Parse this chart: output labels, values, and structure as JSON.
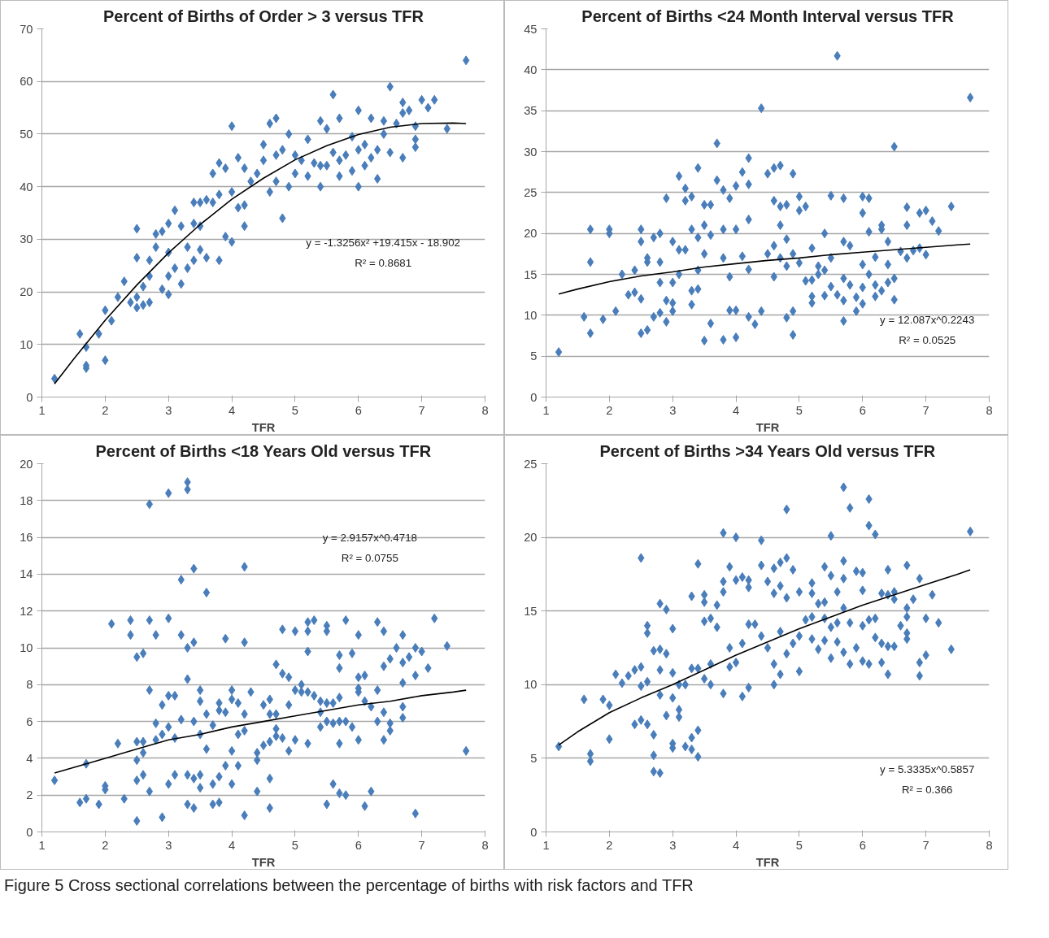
{
  "chart_data": [
    {
      "type": "scatter",
      "title": "Percent of Births of Order > 3 versus TFR",
      "xlabel": "TFR",
      "xlim": [
        1,
        8
      ],
      "xticks": [
        1,
        2,
        3,
        4,
        5,
        6,
        7,
        8
      ],
      "ylim": [
        0,
        70
      ],
      "yticks": [
        0,
        10,
        20,
        30,
        40,
        50,
        60,
        70
      ],
      "grid": "y",
      "series": [
        {
          "marker": "diamond",
          "color": "#4a7ebb",
          "x": [
            1.2,
            1.6,
            1.7,
            1.7,
            1.7,
            1.9,
            2.0,
            2.0,
            2.1,
            2.2,
            2.3,
            2.4,
            2.5,
            2.5,
            2.5,
            2.5,
            2.6,
            2.6,
            2.7,
            2.7,
            2.7,
            2.8,
            2.8,
            2.9,
            2.9,
            3.0,
            3.0,
            3.0,
            3.0,
            3.1,
            3.1,
            3.2,
            3.2,
            3.3,
            3.3,
            3.4,
            3.4,
            3.4,
            3.5,
            3.5,
            3.5,
            3.6,
            3.6,
            3.7,
            3.7,
            3.8,
            3.8,
            3.8,
            3.9,
            3.9,
            4.0,
            4.0,
            4.0,
            4.1,
            4.1,
            4.2,
            4.2,
            4.2,
            4.3,
            4.4,
            4.5,
            4.5,
            4.6,
            4.6,
            4.7,
            4.7,
            4.7,
            4.8,
            4.8,
            4.9,
            4.9,
            5.0,
            5.0,
            5.1,
            5.2,
            5.2,
            5.3,
            5.4,
            5.4,
            5.4,
            5.5,
            5.5,
            5.6,
            5.6,
            5.7,
            5.7,
            5.7,
            5.8,
            5.9,
            5.9,
            6.0,
            6.0,
            6.0,
            6.1,
            6.1,
            6.2,
            6.2,
            6.3,
            6.3,
            6.4,
            6.4,
            6.5,
            6.5,
            6.6,
            6.7,
            6.7,
            6.7,
            6.8,
            6.9,
            6.9,
            6.9,
            7.0,
            7.1,
            7.2,
            7.4,
            7.7
          ],
          "values": [
            3.5,
            12,
            9.5,
            6,
            5.5,
            12,
            16.5,
            7,
            14.5,
            19,
            22,
            18,
            32,
            26.5,
            17,
            19,
            21,
            17.5,
            18,
            23,
            26,
            28.5,
            31,
            31.5,
            20.5,
            33,
            27.5,
            23,
            19.5,
            35.5,
            24.5,
            32.5,
            21.5,
            28.5,
            24.5,
            37,
            33,
            26,
            37,
            32.5,
            28,
            37.5,
            26.5,
            42.5,
            37,
            44.5,
            38.5,
            26,
            43.5,
            30.5,
            51.5,
            39,
            29.5,
            45.5,
            36,
            43.5,
            36.5,
            32.5,
            41,
            42.5,
            48,
            45,
            52,
            39,
            53,
            46,
            41,
            47,
            34,
            50,
            40,
            46,
            42.5,
            45,
            49,
            42,
            44.5,
            52.5,
            40,
            44,
            51,
            44,
            57.5,
            46.5,
            53,
            45,
            42,
            46,
            43,
            49.5,
            54.5,
            47,
            40,
            48,
            44,
            53,
            45.5,
            41.5,
            47,
            52.5,
            50,
            59,
            46.5,
            52,
            56,
            54,
            45.5,
            54.5,
            51.5,
            49,
            47.5,
            56.5,
            55,
            56.5,
            51,
            64
          ]
        },
        {
          "type": "line",
          "color": "#000000",
          "x": [
            1.2,
            1.5,
            2,
            2.5,
            3,
            3.5,
            4,
            4.5,
            5,
            5.5,
            6,
            6.5,
            7,
            7.5,
            7.7
          ],
          "values": [
            2.5,
            7.2,
            14.6,
            21.3,
            27.4,
            32.8,
            37.6,
            41.6,
            45.1,
            47.8,
            49.9,
            51.3,
            52.0,
            52.1,
            52.0
          ]
        }
      ],
      "annotations": [
        "y = -1.3256x² +19.415x - 18.902",
        "R² = 0.8681"
      ]
    },
    {
      "type": "scatter",
      "title": "Percent of Births <24 Month Interval versus TFR",
      "xlabel": "TFR",
      "xlim": [
        1,
        8
      ],
      "xticks": [
        1,
        2,
        3,
        4,
        5,
        6,
        7,
        8
      ],
      "ylim": [
        0,
        45
      ],
      "yticks": [
        0,
        5,
        10,
        15,
        20,
        25,
        30,
        35,
        40,
        45
      ],
      "grid": "y",
      "series": [
        {
          "marker": "diamond",
          "color": "#4a7ebb",
          "x": [
            1.2,
            1.6,
            1.7,
            1.7,
            1.7,
            1.9,
            2.0,
            2.0,
            2.1,
            2.2,
            2.3,
            2.4,
            2.4,
            2.5,
            2.5,
            2.5,
            2.5,
            2.6,
            2.6,
            2.6,
            2.7,
            2.7,
            2.8,
            2.8,
            2.8,
            2.8,
            2.9,
            2.9,
            2.9,
            3.0,
            3.0,
            3.0,
            3.0,
            3.1,
            3.1,
            3.1,
            3.2,
            3.2,
            3.2,
            3.3,
            3.3,
            3.3,
            3.3,
            3.4,
            3.4,
            3.4,
            3.4,
            3.5,
            3.5,
            3.5,
            3.5,
            3.6,
            3.6,
            3.6,
            3.7,
            3.7,
            3.8,
            3.8,
            3.8,
            3.8,
            3.9,
            3.9,
            3.9,
            4.0,
            4.0,
            4.0,
            4.0,
            4.1,
            4.1,
            4.2,
            4.2,
            4.2,
            4.2,
            4.2,
            4.3,
            4.4,
            4.4,
            4.5,
            4.5,
            4.6,
            4.6,
            4.6,
            4.6,
            4.7,
            4.7,
            4.7,
            4.7,
            4.8,
            4.8,
            4.8,
            4.8,
            4.9,
            4.9,
            4.9,
            4.9,
            5.0,
            5.0,
            5.0,
            5.1,
            5.1,
            5.2,
            5.2,
            5.2,
            5.2,
            5.3,
            5.3,
            5.4,
            5.4,
            5.4,
            5.5,
            5.5,
            5.5,
            5.6,
            5.6,
            5.7,
            5.7,
            5.7,
            5.7,
            5.7,
            5.8,
            5.8,
            5.9,
            5.9,
            6.0,
            6.0,
            6.0,
            6.0,
            6.0,
            6.1,
            6.1,
            6.1,
            6.2,
            6.2,
            6.2,
            6.3,
            6.3,
            6.3,
            6.4,
            6.4,
            6.4,
            6.5,
            6.5,
            6.5,
            6.6,
            6.7,
            6.7,
            6.7,
            6.8,
            6.9,
            6.9,
            7.0,
            7.0,
            7.1,
            7.2,
            7.4,
            7.7
          ],
          "values": [
            5.5,
            9.8,
            20.5,
            16.5,
            7.8,
            9.5,
            20.5,
            20,
            10.5,
            15,
            12.5,
            15.5,
            12.8,
            20.5,
            19,
            12,
            7.8,
            17,
            16.5,
            8.2,
            19.5,
            9.8,
            20,
            16.5,
            14,
            10.3,
            24.3,
            11.8,
            9.2,
            19,
            14,
            11.5,
            10.5,
            27,
            18,
            15,
            25.5,
            24,
            18,
            24.5,
            20.5,
            13,
            11.3,
            28,
            19.5,
            15.5,
            13.2,
            23.5,
            21,
            17.5,
            6.9,
            23.5,
            19.8,
            9,
            31,
            26.5,
            25.3,
            20.5,
            17,
            7,
            24.3,
            14.7,
            10.6,
            25.8,
            20.5,
            10.6,
            7.3,
            27.5,
            17.2,
            29.2,
            26,
            21.7,
            15.6,
            9.8,
            8.9,
            35.3,
            10.5,
            27.3,
            17.5,
            28,
            24,
            18.5,
            14.7,
            28.3,
            23.3,
            21,
            17,
            23.5,
            19.3,
            16,
            9.7,
            27.3,
            17.5,
            10.5,
            7.6,
            24.5,
            22.8,
            16.4,
            23.3,
            14.2,
            18.2,
            14.3,
            12.3,
            11.5,
            16,
            15,
            20,
            15.5,
            12.4,
            24.6,
            17,
            13.5,
            41.7,
            12.5,
            24.3,
            19,
            14.5,
            11.8,
            9.3,
            18.5,
            13.7,
            12.2,
            10.5,
            24.5,
            22.5,
            16.2,
            13.4,
            11.4,
            24.3,
            20.2,
            15,
            17.1,
            13.7,
            12.3,
            21,
            20.5,
            13,
            19,
            16.2,
            14,
            30.6,
            14.5,
            11.9,
            17.8,
            23.2,
            21,
            17,
            17.9,
            22.5,
            18.2,
            22.8,
            17.4,
            21.5,
            20.3,
            23.3,
            36.6
          ]
        },
        {
          "type": "line",
          "color": "#000000",
          "x": [
            1.2,
            1.5,
            2,
            2.5,
            3,
            3.5,
            4,
            4.5,
            5,
            5.5,
            6,
            6.5,
            7,
            7.5,
            7.7
          ],
          "values": [
            12.6,
            13.2,
            14.1,
            14.8,
            15.3,
            15.9,
            16.3,
            16.7,
            17.0,
            17.4,
            17.7,
            18.0,
            18.3,
            18.6,
            18.7
          ]
        }
      ],
      "annotations": [
        "y = 12.087x^0.2243",
        "R² = 0.0525"
      ]
    },
    {
      "type": "scatter",
      "title": "Percent of Births <18 Years Old versus TFR",
      "xlabel": "TFR",
      "xlim": [
        1,
        8
      ],
      "xticks": [
        1,
        2,
        3,
        4,
        5,
        6,
        7,
        8
      ],
      "ylim": [
        0,
        20
      ],
      "yticks": [
        0,
        2,
        4,
        6,
        8,
        10,
        12,
        14,
        16,
        18,
        20
      ],
      "grid": "y",
      "series": [
        {
          "marker": "diamond",
          "color": "#4a7ebb",
          "x": [
            1.2,
            1.6,
            1.7,
            1.7,
            1.9,
            2.0,
            2.0,
            2.1,
            2.2,
            2.3,
            2.4,
            2.4,
            2.5,
            2.5,
            2.5,
            2.5,
            2.5,
            2.6,
            2.6,
            2.6,
            2.6,
            2.7,
            2.7,
            2.7,
            2.7,
            2.8,
            2.8,
            2.8,
            2.9,
            2.9,
            2.9,
            3.0,
            3.0,
            3.0,
            3.0,
            3.0,
            3.1,
            3.1,
            3.1,
            3.2,
            3.2,
            3.2,
            3.3,
            3.3,
            3.3,
            3.3,
            3.3,
            3.3,
            3.4,
            3.4,
            3.4,
            3.4,
            3.4,
            3.5,
            3.5,
            3.5,
            3.5,
            3.5,
            3.6,
            3.6,
            3.6,
            3.7,
            3.7,
            3.7,
            3.8,
            3.8,
            3.8,
            3.8,
            3.9,
            3.9,
            3.9,
            4.0,
            4.0,
            4.0,
            4.0,
            4.1,
            4.1,
            4.1,
            4.2,
            4.2,
            4.2,
            4.2,
            4.2,
            4.3,
            4.4,
            4.4,
            4.4,
            4.5,
            4.5,
            4.6,
            4.6,
            4.6,
            4.6,
            4.6,
            4.7,
            4.7,
            4.7,
            4.7,
            4.8,
            4.8,
            4.8,
            4.9,
            4.9,
            4.9,
            5.0,
            5.0,
            5.0,
            5.1,
            5.1,
            5.2,
            5.2,
            5.2,
            5.2,
            5.2,
            5.3,
            5.3,
            5.4,
            5.4,
            5.4,
            5.5,
            5.5,
            5.5,
            5.5,
            5.5,
            5.6,
            5.6,
            5.6,
            5.7,
            5.7,
            5.7,
            5.7,
            5.7,
            5.7,
            5.8,
            5.8,
            5.8,
            5.9,
            5.9,
            6.0,
            6.0,
            6.0,
            6.0,
            6.0,
            6.1,
            6.1,
            6.1,
            6.2,
            6.2,
            6.3,
            6.3,
            6.3,
            6.4,
            6.4,
            6.4,
            6.4,
            6.5,
            6.5,
            6.5,
            6.6,
            6.7,
            6.7,
            6.7,
            6.7,
            6.7,
            6.8,
            6.9,
            6.9,
            6.9,
            7.0,
            7.1,
            7.2,
            7.4,
            7.7
          ],
          "values": [
            2.8,
            1.6,
            3.7,
            1.8,
            1.5,
            2.5,
            2.3,
            11.3,
            4.8,
            1.8,
            11.5,
            10.7,
            9.5,
            4.9,
            3.9,
            2.8,
            0.6,
            9.7,
            4.9,
            4.3,
            3.1,
            17.8,
            11.5,
            7.7,
            2.2,
            10.7,
            5.9,
            5,
            6.9,
            5.3,
            0.8,
            18.4,
            11.6,
            7.4,
            5.7,
            2.6,
            7.4,
            5.1,
            3.1,
            13.7,
            10.7,
            6.1,
            19,
            18.6,
            10,
            8.3,
            3.1,
            1.5,
            14.3,
            10.3,
            6,
            2.9,
            1.3,
            7.7,
            7.1,
            5.3,
            3.1,
            2.4,
            13,
            6.4,
            4.5,
            5.8,
            2.6,
            1.5,
            7,
            6.6,
            3,
            1.6,
            10.5,
            6.5,
            3.6,
            7.7,
            7.2,
            4.4,
            2.6,
            7,
            5.3,
            3.6,
            14.4,
            10.3,
            6.4,
            5.5,
            0.9,
            7.6,
            4.3,
            3.9,
            2.2,
            6.9,
            4.7,
            7.2,
            6.4,
            4.9,
            2.9,
            1.3,
            9.1,
            6.4,
            5.6,
            5.2,
            11,
            8.6,
            5.1,
            8.4,
            6.9,
            4.4,
            10.9,
            7.7,
            5,
            8,
            7.6,
            11.4,
            10.9,
            9.8,
            7.6,
            4.8,
            11.5,
            7.4,
            7.1,
            6.5,
            5.7,
            11.2,
            10.9,
            7,
            6,
            1.5,
            7,
            5.9,
            2.6,
            9.6,
            8.9,
            7.3,
            6,
            4.8,
            2.1,
            11.5,
            6,
            2,
            9.7,
            5.7,
            10.7,
            8.4,
            7.8,
            7.6,
            5,
            8.5,
            7.1,
            1.4,
            6.8,
            2.2,
            11.4,
            7.7,
            6,
            10.9,
            9,
            6.5,
            5,
            9.4,
            5.9,
            5.5,
            10,
            10.7,
            9.2,
            8.1,
            6.8,
            6.2,
            9.5,
            10,
            8.5,
            1,
            9.8,
            8.9,
            11.6,
            10.1,
            4.4
          ]
        },
        {
          "type": "line",
          "color": "#000000",
          "x": [
            1.2,
            1.5,
            2,
            2.5,
            3,
            3.5,
            4,
            4.5,
            5,
            5.5,
            6,
            6.5,
            7,
            7.5,
            7.7
          ],
          "values": [
            3.2,
            3.5,
            4.0,
            4.5,
            5.0,
            5.3,
            5.7,
            6.0,
            6.3,
            6.6,
            6.9,
            7.1,
            7.4,
            7.6,
            7.7
          ]
        }
      ],
      "annotations": [
        "y = 2.9157x^0.4718",
        "R² = 0.0755"
      ]
    },
    {
      "type": "scatter",
      "title": "Percent of Births >34 Years Old versus TFR",
      "xlabel": "TFR",
      "xlim": [
        1,
        8
      ],
      "xticks": [
        1,
        2,
        3,
        4,
        5,
        6,
        7,
        8
      ],
      "ylim": [
        0,
        25
      ],
      "yticks": [
        0,
        5,
        10,
        15,
        20,
        25
      ],
      "grid": "y",
      "series": [
        {
          "marker": "diamond",
          "color": "#4a7ebb",
          "x": [
            1.2,
            1.6,
            1.7,
            1.7,
            1.9,
            2.0,
            2.0,
            2.1,
            2.2,
            2.3,
            2.4,
            2.4,
            2.5,
            2.5,
            2.5,
            2.5,
            2.6,
            2.6,
            2.6,
            2.6,
            2.7,
            2.7,
            2.7,
            2.7,
            2.8,
            2.8,
            2.8,
            2.8,
            2.8,
            2.9,
            2.9,
            2.9,
            3.0,
            3.0,
            3.0,
            3.0,
            3.0,
            3.1,
            3.1,
            3.1,
            3.2,
            3.2,
            3.3,
            3.3,
            3.3,
            3.3,
            3.4,
            3.4,
            3.4,
            3.4,
            3.5,
            3.5,
            3.5,
            3.5,
            3.6,
            3.6,
            3.6,
            3.7,
            3.7,
            3.8,
            3.8,
            3.8,
            3.8,
            3.9,
            3.9,
            3.9,
            4.0,
            4.0,
            4.0,
            4.1,
            4.1,
            4.1,
            4.2,
            4.2,
            4.2,
            4.2,
            4.3,
            4.4,
            4.4,
            4.4,
            4.5,
            4.5,
            4.6,
            4.6,
            4.6,
            4.6,
            4.7,
            4.7,
            4.7,
            4.7,
            4.8,
            4.8,
            4.8,
            4.8,
            4.9,
            4.9,
            5.0,
            5.0,
            5.0,
            5.1,
            5.2,
            5.2,
            5.2,
            5.2,
            5.3,
            5.3,
            5.4,
            5.4,
            5.4,
            5.4,
            5.5,
            5.5,
            5.5,
            5.5,
            5.6,
            5.6,
            5.6,
            5.7,
            5.7,
            5.7,
            5.7,
            5.7,
            5.8,
            5.8,
            5.8,
            5.9,
            5.9,
            6.0,
            6.0,
            6.0,
            6.0,
            6.1,
            6.1,
            6.1,
            6.1,
            6.2,
            6.2,
            6.2,
            6.3,
            6.3,
            6.3,
            6.4,
            6.4,
            6.4,
            6.4,
            6.5,
            6.5,
            6.5,
            6.6,
            6.7,
            6.7,
            6.7,
            6.7,
            6.7,
            6.8,
            6.9,
            6.9,
            6.9,
            7.0,
            7.0,
            7.1,
            7.2,
            7.4,
            7.7
          ],
          "values": [
            5.8,
            9,
            5.3,
            4.8,
            9,
            8.6,
            6.3,
            10.7,
            10.1,
            10.6,
            11,
            7.3,
            18.6,
            11.2,
            9.9,
            7.6,
            14,
            13.5,
            10.2,
            7.3,
            12.3,
            6.6,
            5.2,
            4.1,
            15.5,
            12.4,
            11,
            9.3,
            4,
            15.1,
            12.1,
            7.9,
            13.8,
            10.8,
            9.1,
            6,
            5.7,
            10,
            8.3,
            7.8,
            10,
            5.8,
            16,
            11.1,
            6.4,
            5.6,
            18.2,
            11.1,
            6.9,
            5.1,
            16.1,
            15.6,
            14.3,
            10.4,
            14.5,
            11.4,
            10,
            15.4,
            13.9,
            20.3,
            17,
            16.3,
            9.4,
            18,
            12.5,
            11.2,
            20,
            17.1,
            11.5,
            17.3,
            12.8,
            9.2,
            17.1,
            16.6,
            14.1,
            9.8,
            14.1,
            19.8,
            18.1,
            13.3,
            17,
            12.5,
            17.9,
            16.2,
            11.4,
            10,
            18.3,
            16.7,
            13.6,
            10.7,
            21.9,
            18.6,
            15.9,
            12.1,
            17.8,
            12.8,
            16.3,
            13.3,
            10.9,
            14.4,
            16.9,
            16.2,
            14.6,
            13.1,
            15.5,
            12.4,
            18,
            15.6,
            14.5,
            13,
            20.1,
            17.4,
            13.9,
            11.8,
            16.3,
            14.2,
            12.9,
            23.4,
            18.4,
            17.2,
            15.2,
            12.2,
            22,
            14.2,
            11.4,
            17.7,
            12.5,
            17.6,
            16.4,
            14,
            11.6,
            22.6,
            20.8,
            14.4,
            11.4,
            20.2,
            14.5,
            13.2,
            16.2,
            12.8,
            11.5,
            17.8,
            16.1,
            12.6,
            10.7,
            16.3,
            15.8,
            12.6,
            14,
            18.1,
            15.2,
            14.6,
            13.5,
            13.1,
            15.8,
            17.2,
            11.5,
            10.6,
            14.5,
            12,
            16.1,
            14.2,
            12.4,
            20.4
          ]
        },
        {
          "type": "line",
          "color": "#000000",
          "x": [
            1.2,
            1.5,
            2,
            2.5,
            3,
            3.5,
            4,
            4.5,
            5,
            5.5,
            6,
            6.5,
            7,
            7.5,
            7.7
          ],
          "values": [
            5.9,
            6.8,
            8.1,
            9.1,
            10.0,
            11.0,
            12.0,
            12.9,
            13.8,
            14.6,
            15.4,
            16.1,
            16.8,
            17.5,
            17.8
          ]
        }
      ],
      "annotations": [
        "y = 5.3335x^0.5857",
        "R² = 0.366",
        "Figure 5 Cross sectional correlations between the percentage of births with risk factors and TFR"
      ]
    }
  ]
}
